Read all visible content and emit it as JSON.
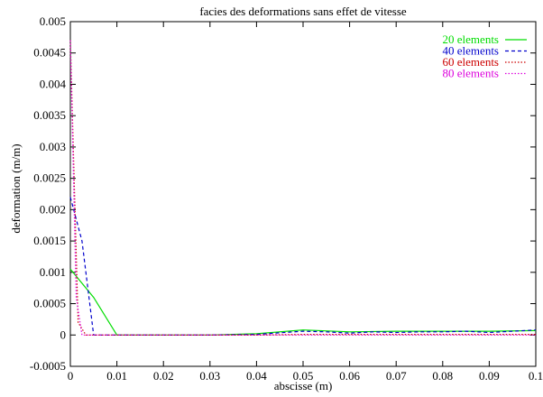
{
  "chart_data": {
    "type": "line",
    "title": "facies des deformations sans effet de vitesse",
    "xlabel": "abscisse (m)",
    "ylabel": "deformation (m/m)",
    "xlim": [
      0,
      0.1
    ],
    "ylim": [
      -0.0005,
      0.005
    ],
    "xticks": [
      "0",
      "0.01",
      "0.02",
      "0.03",
      "0.04",
      "0.05",
      "0.06",
      "0.07",
      "0.08",
      "0.09",
      "0.1"
    ],
    "yticks": [
      "-0.0005",
      "0",
      "0.0005",
      "0.001",
      "0.0015",
      "0.002",
      "0.0025",
      "0.003",
      "0.0035",
      "0.004",
      "0.0045",
      "0.005"
    ],
    "xtick_values": [
      0,
      0.01,
      0.02,
      0.03,
      0.04,
      0.05,
      0.06,
      0.07,
      0.08,
      0.09,
      0.1
    ],
    "ytick_values": [
      -0.0005,
      0,
      0.0005,
      0.001,
      0.0015,
      0.002,
      0.0025,
      0.003,
      0.0035,
      0.004,
      0.0045,
      0.005
    ],
    "grid": false,
    "legend_position": "top-right",
    "series": [
      {
        "name": "20 elements",
        "color": "#00dd00",
        "dash": "solid",
        "x": [
          0,
          0.005,
          0.01,
          0.02,
          0.03,
          0.04,
          0.05,
          0.06,
          0.07,
          0.08,
          0.09,
          0.1
        ],
        "y": [
          0.00105,
          0.0006,
          0.0,
          0.0,
          0.0,
          2e-05,
          8e-05,
          5e-05,
          6e-05,
          6e-05,
          6e-05,
          7e-05
        ]
      },
      {
        "name": "40 elements",
        "color": "#0000cc",
        "dash": "dashed",
        "x": [
          0,
          0.0025,
          0.005,
          0.0075,
          0.01,
          0.02,
          0.03,
          0.04,
          0.05,
          0.055,
          0.06,
          0.065,
          0.07,
          0.075,
          0.08,
          0.085,
          0.09,
          0.095,
          0.1
        ],
        "y": [
          0.0022,
          0.0015,
          0.0,
          0.0,
          0.0,
          0.0,
          0.0,
          1e-05,
          6e-05,
          5e-05,
          3e-05,
          5e-05,
          4e-05,
          5e-05,
          5e-05,
          6e-05,
          4e-05,
          6e-05,
          8e-05
        ]
      },
      {
        "name": "60 elements",
        "color": "#cc0000",
        "dash": "dotted",
        "x": [
          0,
          0.00167,
          0.00333,
          0.01,
          0.02,
          0.03,
          0.04,
          0.05,
          0.06,
          0.07,
          0.08,
          0.09,
          0.1
        ],
        "y": [
          0.0047,
          0.0002,
          0.0,
          0.0,
          0.0,
          0.0,
          0.0,
          1e-05,
          1e-05,
          1e-05,
          1e-05,
          1e-05,
          1e-05
        ]
      },
      {
        "name": "80 elements",
        "color": "#dd00dd",
        "dash": "dotted",
        "x": [
          0,
          0.00125,
          0.0025,
          0.01,
          0.02,
          0.03,
          0.04,
          0.05,
          0.06,
          0.07,
          0.08,
          0.09,
          0.1
        ],
        "y": [
          0.0047,
          0.0006,
          0.0,
          0.0,
          0.0,
          0.0,
          0.0,
          0.0,
          0.0,
          0.0,
          0.0,
          0.0,
          0.0
        ]
      }
    ]
  }
}
